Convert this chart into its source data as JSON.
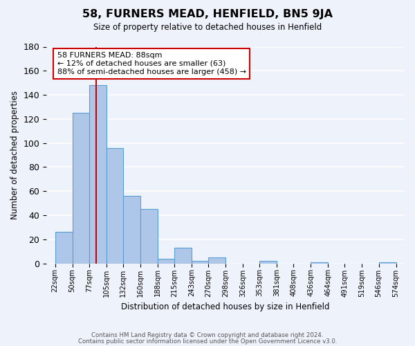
{
  "title": "58, FURNERS MEAD, HENFIELD, BN5 9JA",
  "subtitle": "Size of property relative to detached houses in Henfield",
  "xlabel": "Distribution of detached houses by size in Henfield",
  "ylabel": "Number of detached properties",
  "bin_edges": [
    22,
    50,
    77,
    105,
    132,
    160,
    188,
    215,
    243,
    270,
    298,
    326,
    353,
    381,
    408,
    436,
    464,
    491,
    519,
    546,
    574
  ],
  "bin_labels": [
    "22sqm",
    "50sqm",
    "77sqm",
    "105sqm",
    "132sqm",
    "160sqm",
    "188sqm",
    "215sqm",
    "243sqm",
    "270sqm",
    "298sqm",
    "326sqm",
    "353sqm",
    "381sqm",
    "408sqm",
    "436sqm",
    "464sqm",
    "491sqm",
    "519sqm",
    "546sqm",
    "574sqm"
  ],
  "bar_heights": [
    26,
    125,
    148,
    96,
    56,
    45,
    4,
    13,
    2,
    5,
    0,
    0,
    2,
    0,
    0,
    1,
    0,
    0,
    0,
    1
  ],
  "bar_color": "#aec6e8",
  "bar_edge_color": "#5a9fd4",
  "ylim": [
    0,
    180
  ],
  "yticks": [
    0,
    20,
    40,
    60,
    80,
    100,
    120,
    140,
    160,
    180
  ],
  "property_line_x": 88,
  "annotation_title": "58 FURNERS MEAD: 88sqm",
  "annotation_line1": "← 12% of detached houses are smaller (63)",
  "annotation_line2": "88% of semi-detached houses are larger (458) →",
  "annotation_box_color": "#ffffff",
  "annotation_box_edge": "#cc0000",
  "property_line_color": "#cc0000",
  "footer_line1": "Contains HM Land Registry data © Crown copyright and database right 2024.",
  "footer_line2": "Contains public sector information licensed under the Open Government Licence v3.0.",
  "background_color": "#eef2fa",
  "grid_color": "#ffffff"
}
